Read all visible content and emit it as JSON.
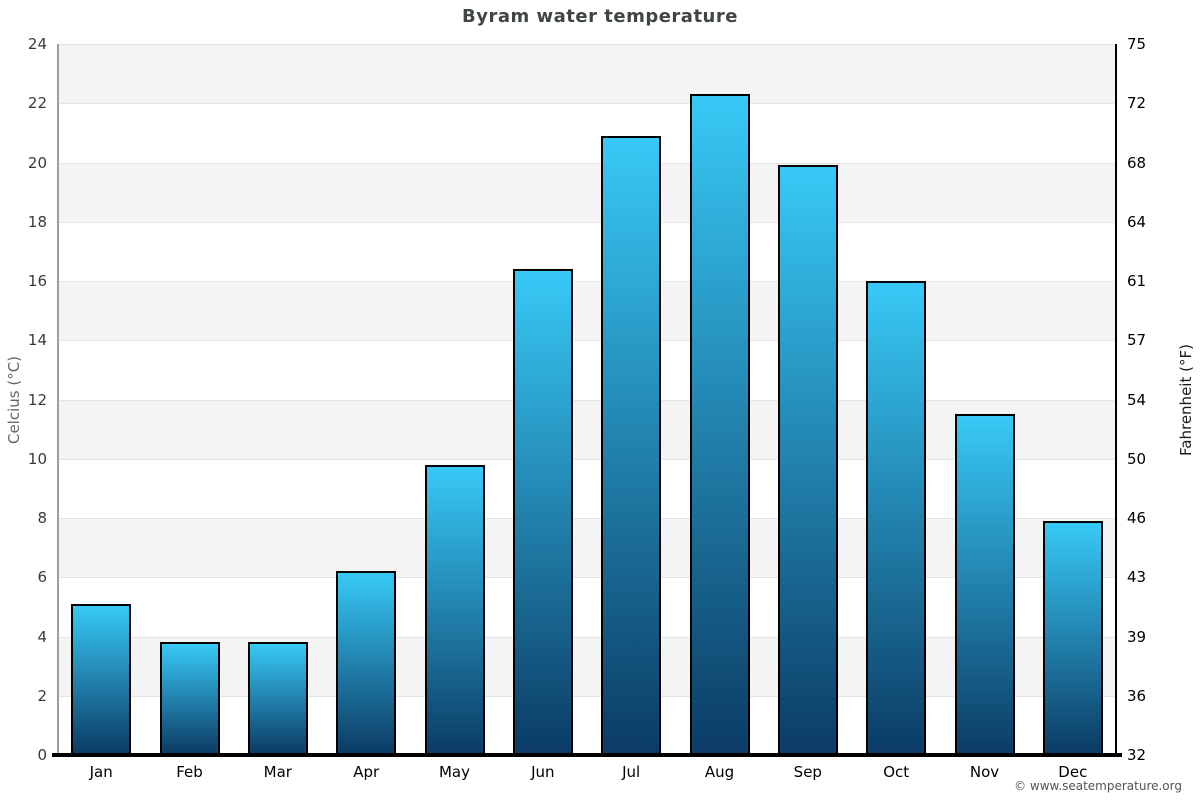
{
  "title": "Byram water temperature",
  "footer": {
    "text": "© www.seatemperature.org"
  },
  "chart_data": {
    "type": "bar",
    "title": "Byram water temperature",
    "categories": [
      "Jan",
      "Feb",
      "Mar",
      "Apr",
      "May",
      "Jun",
      "Jul",
      "Aug",
      "Sep",
      "Oct",
      "Nov",
      "Dec"
    ],
    "values": [
      5.1,
      3.8,
      3.8,
      6.2,
      9.8,
      16.4,
      20.9,
      22.3,
      19.9,
      16.0,
      11.5,
      7.9
    ],
    "unit": "°C",
    "ylabel_left": "Celcius (°C)",
    "ylabel_right": "Fahrenheit (°F)",
    "xlabel": "",
    "ylim_left": [
      0,
      24
    ],
    "ylim_right": [
      32,
      75
    ],
    "yticks_left": [
      0,
      2,
      4,
      6,
      8,
      10,
      12,
      14,
      16,
      18,
      20,
      22,
      24
    ],
    "yticks_right": [
      32,
      36,
      39,
      43,
      46,
      50,
      54,
      57,
      61,
      64,
      68,
      72,
      75
    ],
    "grid": "horizontal-alternating-bands",
    "legend": "none",
    "colors": {
      "bar_gradient_top": "#38c9f6",
      "bar_gradient_bottom": "#0b3c65",
      "bar_border": "#000000",
      "band_light": "#ffffff",
      "band_dark": "#f4f4f4",
      "gridline": "#e4e4e4",
      "axis_left_line": "#9e9e9e",
      "axis_right_line": "#000000",
      "axis_bottom_line": "#000000",
      "title_color": "#3f4447",
      "tick_color_left": "#3a3a3a",
      "tick_color_right": "#000000",
      "month_label_color": "#000000",
      "footer_color": "#555555"
    }
  }
}
